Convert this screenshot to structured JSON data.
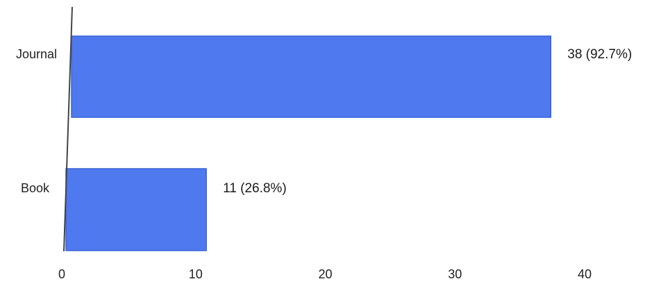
{
  "chart_data": {
    "type": "bar",
    "orientation": "horizontal",
    "title": "",
    "xlabel": "",
    "ylabel": "",
    "categories": [
      "Journal",
      "Book"
    ],
    "values": [
      38,
      11
    ],
    "data_labels": [
      "38 (92.7%)",
      "11 (26.8%)"
    ],
    "xlim": [
      0,
      40
    ],
    "x_ticks": [
      "0",
      "10",
      "20",
      "30",
      "40"
    ],
    "grid": false,
    "legend": "none",
    "bar_color": "#4f79ee",
    "bar_edge_color": "#3a62d8"
  }
}
